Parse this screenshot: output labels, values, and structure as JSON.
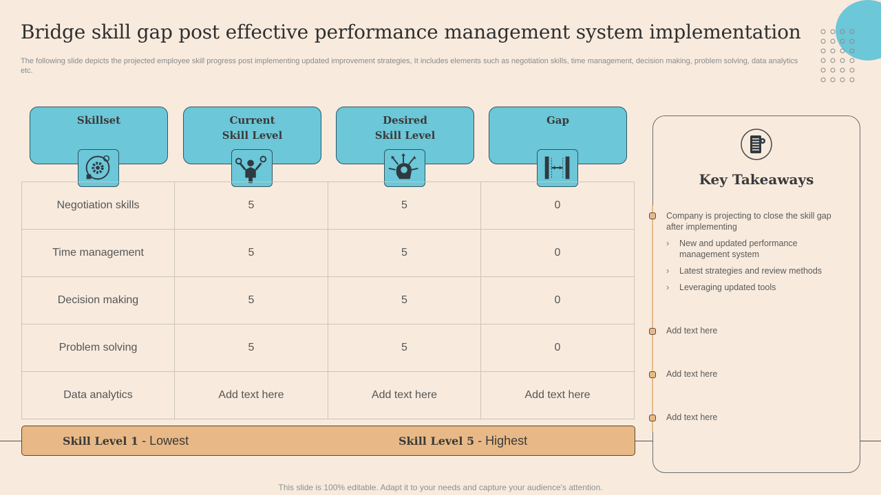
{
  "title": "Bridge skill gap post effective performance management system implementation",
  "subtitle": "The following slide depicts the projected employee skill progress post implementing updated improvement strategies, It includes elements such as negotiation skills, time management, decision making, problem solving, data analytics etc.",
  "headers": [
    {
      "line1": "Skillset",
      "line2": ""
    },
    {
      "line1": "Current",
      "line2": "Skill Level"
    },
    {
      "line1": "Desired",
      "line2": "Skill Level"
    },
    {
      "line1": "Gap",
      "line2": ""
    }
  ],
  "header_icons": [
    "skills-gear-icon",
    "person-with-gears-icon",
    "head-with-arrows-icon",
    "gap-bracket-icon"
  ],
  "rows": [
    [
      "Negotiation skills",
      "5",
      "5",
      "0"
    ],
    [
      "Time management",
      "5",
      "5",
      "0"
    ],
    [
      "Decision making",
      "5",
      "5",
      "0"
    ],
    [
      "Problem solving",
      "5",
      "5",
      "0"
    ],
    [
      "Data analytics",
      "Add text here",
      "Add text here",
      "Add text here"
    ]
  ],
  "legend": {
    "level1_strong": "Skill Level 1",
    "level1_rest": "- Lowest",
    "level5_strong": "Skill Level 5",
    "level5_rest": "- Highest"
  },
  "takeaways": {
    "icon": "server-list-icon",
    "title": "Key Takeaways",
    "point1": "Company is projecting to close the skill gap after implementing",
    "subpoints": [
      "New and updated performance management system",
      "Latest strategies and review methods",
      "Leveraging updated tools"
    ],
    "extra_points": [
      "Add text here",
      "Add text here",
      "Add text here"
    ]
  },
  "footer": "This slide is 100% editable. Adapt it to your needs and capture your audience's attention.",
  "colors": {
    "accent_blue": "#6cc7d8",
    "accent_tan": "#e8b987",
    "background": "#f8ebde"
  }
}
